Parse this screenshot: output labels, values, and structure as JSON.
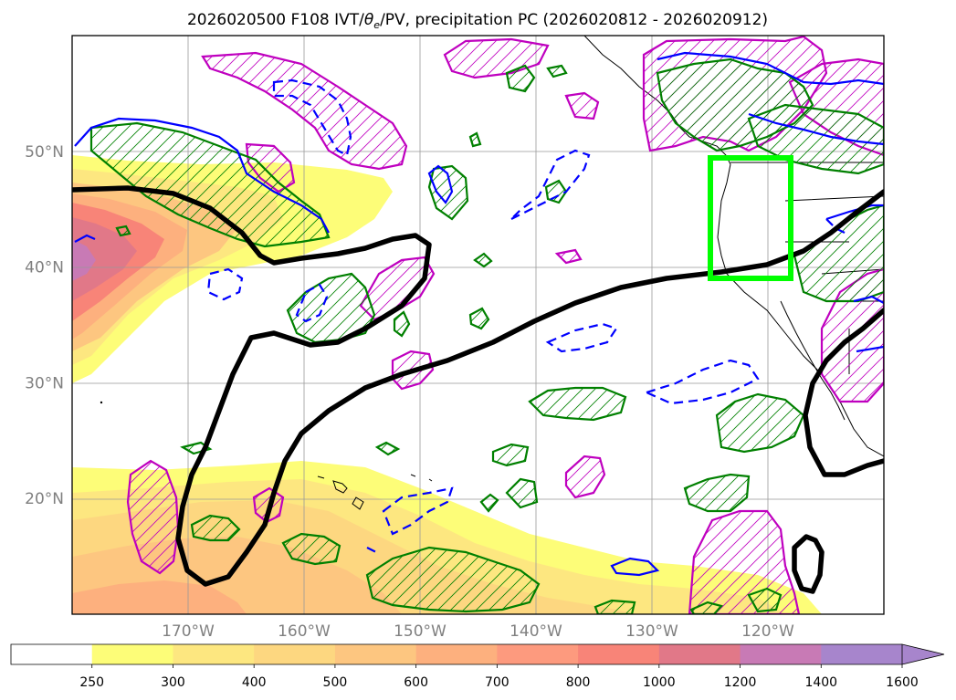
{
  "chart_data": {
    "type": "heatmap",
    "title": "2026020500 F108 IVT/θe/PV, precipitation PC (2026020812 - 2026020912)",
    "title_prefix": "2026020500 F108 IVT/",
    "title_theta": "θ",
    "title_sub": "e",
    "title_suffix": "/PV, precipitation PC (2026020812 - 2026020912)",
    "projection": "lat-lon",
    "xlim": [
      -180,
      -110
    ],
    "ylim": [
      10,
      60
    ],
    "grid": true,
    "lon_ticks": [
      {
        "value": -170,
        "label": "170°W"
      },
      {
        "value": -160,
        "label": "160°W"
      },
      {
        "value": -150,
        "label": "150°W"
      },
      {
        "value": -140,
        "label": "140°W"
      },
      {
        "value": -130,
        "label": "130°W"
      },
      {
        "value": -120,
        "label": "120°W"
      }
    ],
    "lat_ticks": [
      {
        "value": 20,
        "label": "20°N"
      },
      {
        "value": 30,
        "label": "30°N"
      },
      {
        "value": 40,
        "label": "40°N"
      },
      {
        "value": 50,
        "label": "50°N"
      }
    ],
    "colorbar": {
      "levels": [
        250,
        300,
        400,
        500,
        600,
        700,
        800,
        1000,
        1200,
        1400,
        1600
      ],
      "labels": [
        "250",
        "300",
        "400",
        "500",
        "600",
        "700",
        "800",
        "1000",
        "1200",
        "1400",
        "1600"
      ],
      "colors": [
        "#ffffff",
        "#fdfd78",
        "#fde780",
        "#fdd780",
        "#fdc680",
        "#fdb07e",
        "#fd9a7e",
        "#f88478",
        "#e17888",
        "#c87ab5",
        "#a785cc"
      ],
      "extend": "max",
      "placement": "bottom"
    },
    "highlight_box": {
      "lon": [
        -125,
        -118
      ],
      "lat": [
        39,
        49.5
      ],
      "color": "#00ff00"
    },
    "colors": {
      "ivt_fill": "#fdd780",
      "theta_e_contour": "#000000",
      "precip_contour": "#008000",
      "pv_contour": "#bf00bf",
      "neg_contour": "#0000ff"
    }
  }
}
